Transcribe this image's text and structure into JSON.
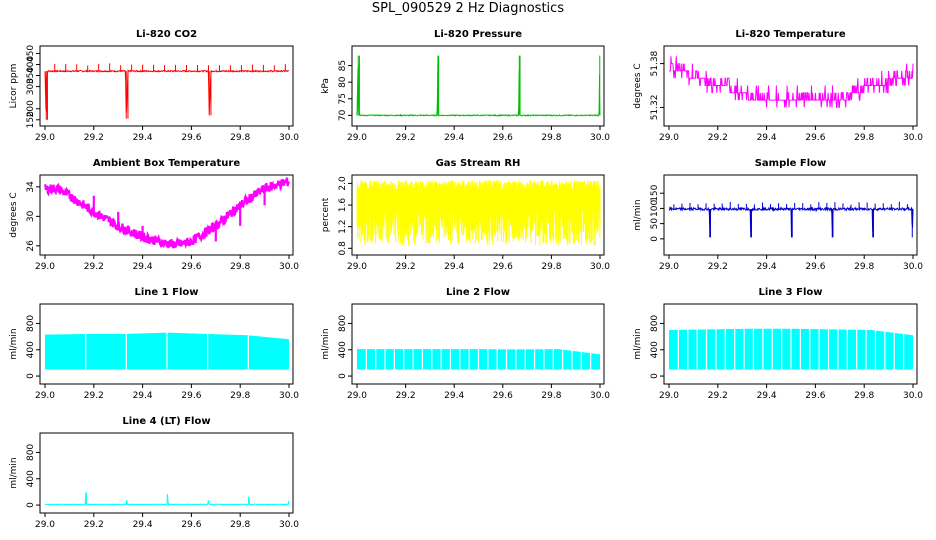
{
  "page_title": "SPL_090529  2 Hz Diagnostics",
  "chart_data": [
    {
      "type": "line",
      "title": "Li-820 CO2",
      "xlabel": "",
      "ylabel": "Licor ppm",
      "xlim": [
        29.0,
        30.0
      ],
      "ylim": [
        140,
        470
      ],
      "x_ticks": [
        "29.0",
        "29.2",
        "29.4",
        "29.6",
        "29.8",
        "30.0"
      ],
      "y_ticks": [
        "150",
        "200",
        "300",
        "350",
        "400",
        "450"
      ],
      "y_tick_values": [
        150,
        200,
        300,
        350,
        400,
        450
      ],
      "color": "#ff0000",
      "series": [
        {
          "x": [
            29.0,
            29.005,
            29.01,
            29.3,
            29.33,
            29.333,
            29.34,
            29.6,
            29.67,
            29.673,
            29.68,
            30.0
          ],
          "y": [
            370,
            150,
            370,
            370,
            370,
            155,
            370,
            370,
            370,
            170,
            370,
            370
          ]
        }
      ]
    },
    {
      "type": "line",
      "title": "Li-820 Pressure",
      "xlabel": "",
      "ylabel": "kPa",
      "xlim": [
        29.0,
        30.0
      ],
      "ylim": [
        68,
        90
      ],
      "x_ticks": [
        "29.0",
        "29.2",
        "29.4",
        "29.6",
        "29.8",
        "30.0"
      ],
      "y_ticks": [
        "70",
        "75",
        "80",
        "85"
      ],
      "y_tick_values": [
        70,
        75,
        80,
        85
      ],
      "color": "#00c000",
      "series": [
        {
          "x": [
            29.0,
            29.005,
            29.01,
            29.33,
            29.333,
            29.336,
            29.665,
            29.668,
            29.671,
            29.996,
            29.999,
            30.0
          ],
          "y": [
            70,
            88,
            70,
            70,
            88,
            70,
            70,
            88,
            70,
            70,
            88,
            70
          ]
        }
      ]
    },
    {
      "type": "line",
      "title": "Li-820 Temperature",
      "xlabel": "",
      "ylabel": "degrees C",
      "xlim": [
        29.0,
        30.0
      ],
      "ylim": [
        51.3,
        51.4
      ],
      "x_ticks": [
        "29.0",
        "29.2",
        "29.4",
        "29.6",
        "29.8",
        "30.0"
      ],
      "y_ticks": [
        "51.32",
        "51.38"
      ],
      "y_tick_values": [
        51.32,
        51.38
      ],
      "color": "#ff00ff",
      "series": [
        {
          "x": [
            29.0,
            29.08,
            29.15,
            29.25,
            29.4,
            29.5,
            29.6,
            29.7,
            29.8,
            29.9,
            30.0
          ],
          "y": [
            51.37,
            51.37,
            51.36,
            51.35,
            51.33,
            51.33,
            51.33,
            51.33,
            51.35,
            51.36,
            51.37
          ]
        }
      ]
    },
    {
      "type": "line",
      "title": "Ambient Box Temperature",
      "xlabel": "",
      "ylabel": "degrees C",
      "xlim": [
        29.0,
        30.0
      ],
      "ylim": [
        25.3,
        35.2
      ],
      "x_ticks": [
        "29.0",
        "29.2",
        "29.4",
        "29.6",
        "29.8",
        "30.0"
      ],
      "y_ticks": [
        "26",
        "30",
        "34"
      ],
      "y_tick_values": [
        26,
        30,
        34
      ],
      "color": "#ff00ff",
      "series": [
        {
          "x": [
            29.0,
            29.05,
            29.1,
            29.2,
            29.3,
            29.4,
            29.5,
            29.55,
            29.6,
            29.7,
            29.8,
            29.9,
            30.0
          ],
          "y": [
            33.7,
            33.8,
            32.8,
            30.6,
            28.7,
            27.2,
            26.3,
            26.2,
            26.6,
            28.7,
            31.5,
            33.8,
            34.7
          ]
        }
      ]
    },
    {
      "type": "line",
      "title": "Gas Stream RH",
      "xlabel": "",
      "ylabel": "percent",
      "xlim": [
        29.0,
        30.0
      ],
      "ylim": [
        0.75,
        2.1
      ],
      "x_ticks": [
        "29.0",
        "29.2",
        "29.4",
        "29.6",
        "29.8",
        "30.0"
      ],
      "y_ticks": [
        "0.8",
        "1.2",
        "1.6",
        "2.0"
      ],
      "y_tick_values": [
        0.8,
        1.2,
        1.6,
        2.0
      ],
      "color": "#ffff00",
      "series": [
        {
          "x": [
            29.0,
            29.2,
            29.4,
            29.6,
            29.8,
            30.0
          ],
          "y": [
            1.6,
            1.6,
            1.6,
            1.6,
            1.6,
            1.6
          ]
        }
      ]
    },
    {
      "type": "line",
      "title": "Sample Flow",
      "xlabel": "",
      "ylabel": "ml/min",
      "xlim": [
        29.0,
        30.0
      ],
      "ylim": [
        -40,
        200
      ],
      "x_ticks": [
        "29.0",
        "29.2",
        "29.4",
        "29.6",
        "29.8",
        "30.0"
      ],
      "y_ticks": [
        "0",
        "50",
        "100",
        "150"
      ],
      "y_tick_values": [
        0,
        50,
        100,
        150
      ],
      "color": "#0000cc",
      "series": [
        {
          "x": [
            29.0,
            29.165,
            29.167,
            29.17,
            29.333,
            29.335,
            29.338,
            29.5,
            29.502,
            29.505,
            29.667,
            29.669,
            29.672,
            29.833,
            29.835,
            29.838,
            29.995,
            29.997,
            30.0
          ],
          "y": [
            98,
            98,
            5,
            98,
            98,
            5,
            98,
            98,
            5,
            98,
            98,
            5,
            98,
            98,
            5,
            98,
            98,
            5,
            98
          ]
        }
      ]
    },
    {
      "type": "area",
      "title": "Line 1 Flow",
      "xlabel": "",
      "ylabel": "ml/min",
      "xlim": [
        29.0,
        30.0
      ],
      "ylim": [
        -60,
        1050
      ],
      "x_ticks": [
        "29.0",
        "29.2",
        "29.4",
        "29.6",
        "29.8",
        "30.0"
      ],
      "y_ticks": [
        "0",
        "400",
        "800"
      ],
      "y_tick_values": [
        0,
        400,
        800
      ],
      "color": "#00ffff",
      "series": [
        {
          "x": [
            29.0,
            29.17,
            29.33,
            29.5,
            29.67,
            29.83,
            30.0
          ],
          "y": [
            630,
            640,
            640,
            660,
            640,
            620,
            560
          ]
        }
      ]
    },
    {
      "type": "area",
      "title": "Line 2 Flow",
      "xlabel": "",
      "ylabel": "ml/min",
      "xlim": [
        29.0,
        30.0
      ],
      "ylim": [
        -60,
        1050
      ],
      "x_ticks": [
        "29.0",
        "29.2",
        "29.4",
        "29.6",
        "29.8",
        "30.0"
      ],
      "y_ticks": [
        "0",
        "400",
        "800"
      ],
      "y_tick_values": [
        0,
        400,
        800
      ],
      "color": "#00ffff",
      "series": [
        {
          "x": [
            29.0,
            29.17,
            29.33,
            29.5,
            29.67,
            29.83,
            30.0
          ],
          "y": [
            410,
            410,
            410,
            410,
            405,
            410,
            330
          ]
        }
      ]
    },
    {
      "type": "area",
      "title": "Line 3 Flow",
      "xlabel": "",
      "ylabel": "ml/min",
      "xlim": [
        29.0,
        30.0
      ],
      "ylim": [
        -60,
        1050
      ],
      "x_ticks": [
        "29.0",
        "29.2",
        "29.4",
        "29.6",
        "29.8",
        "30.0"
      ],
      "y_ticks": [
        "0",
        "400",
        "800"
      ],
      "y_tick_values": [
        0,
        400,
        800
      ],
      "color": "#00ffff",
      "series": [
        {
          "x": [
            29.0,
            29.17,
            29.33,
            29.5,
            29.67,
            29.83,
            30.0
          ],
          "y": [
            700,
            710,
            720,
            720,
            710,
            700,
            620
          ]
        }
      ]
    },
    {
      "type": "line",
      "title": "Line 4 (LT) Flow",
      "xlabel": "",
      "ylabel": "ml/min",
      "xlim": [
        29.0,
        30.0
      ],
      "ylim": [
        -60,
        1050
      ],
      "x_ticks": [
        "29.0",
        "29.2",
        "29.4",
        "29.6",
        "29.8",
        "30.0"
      ],
      "y_ticks": [
        "0",
        "400",
        "800"
      ],
      "y_tick_values": [
        0,
        400,
        800
      ],
      "color": "#00ffff",
      "series": [
        {
          "x": [
            29.0,
            29.165,
            29.167,
            29.17,
            29.333,
            29.335,
            29.338,
            29.5,
            29.502,
            29.505,
            29.667,
            29.669,
            29.672,
            29.833,
            29.835,
            29.838,
            29.997,
            29.999,
            30.0
          ],
          "y": [
            10,
            10,
            190,
            10,
            10,
            90,
            10,
            10,
            170,
            10,
            10,
            80,
            10,
            10,
            160,
            10,
            10,
            110,
            10
          ]
        }
      ]
    }
  ]
}
